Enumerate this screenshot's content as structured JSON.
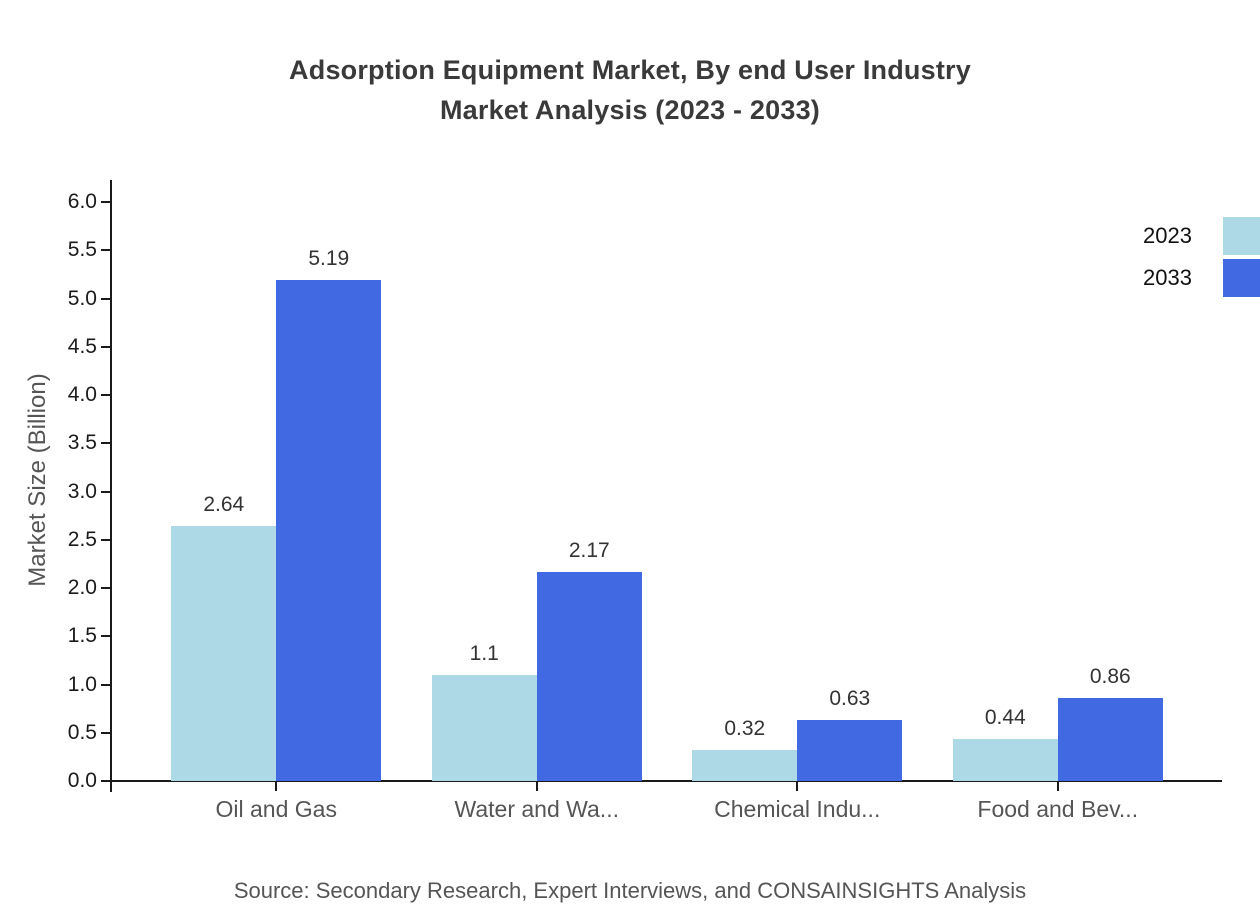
{
  "chart_data": {
    "type": "bar",
    "title": "Adsorption Equipment Market, By end User Industry Market Analysis (2023 - 2033)",
    "title_lines": [
      "Adsorption Equipment Market, By end User Industry",
      "Market Analysis (2023 - 2033)"
    ],
    "xlabel": "",
    "ylabel": "Market Size (Billion)",
    "ylim": [
      0,
      6.0
    ],
    "ytick_step": 0.5,
    "grid": false,
    "legend_position": "top-right",
    "categories": [
      "Oil and Gas",
      "Water and Wa...",
      "Chemical Indu...",
      "Food and Bev..."
    ],
    "series": [
      {
        "name": "2023",
        "color": "#ADD8E6",
        "values": [
          2.64,
          1.1,
          0.32,
          0.44
        ],
        "labels": [
          "2.64",
          "1.1",
          "0.32",
          "0.44"
        ]
      },
      {
        "name": "2033",
        "color": "#4169E1",
        "values": [
          5.19,
          2.17,
          0.63,
          0.86
        ],
        "labels": [
          "5.19",
          "2.17",
          "0.63",
          "0.86"
        ]
      }
    ],
    "source": "Source: Secondary Research, Expert Interviews, and CONSAINSIGHTS Analysis"
  },
  "colors": {
    "series_2023": "#ADD8E6",
    "series_2033": "#4169E1",
    "axis": "#1a1a1a",
    "muted_text": "#555555",
    "title_text": "#3a3a3a"
  }
}
